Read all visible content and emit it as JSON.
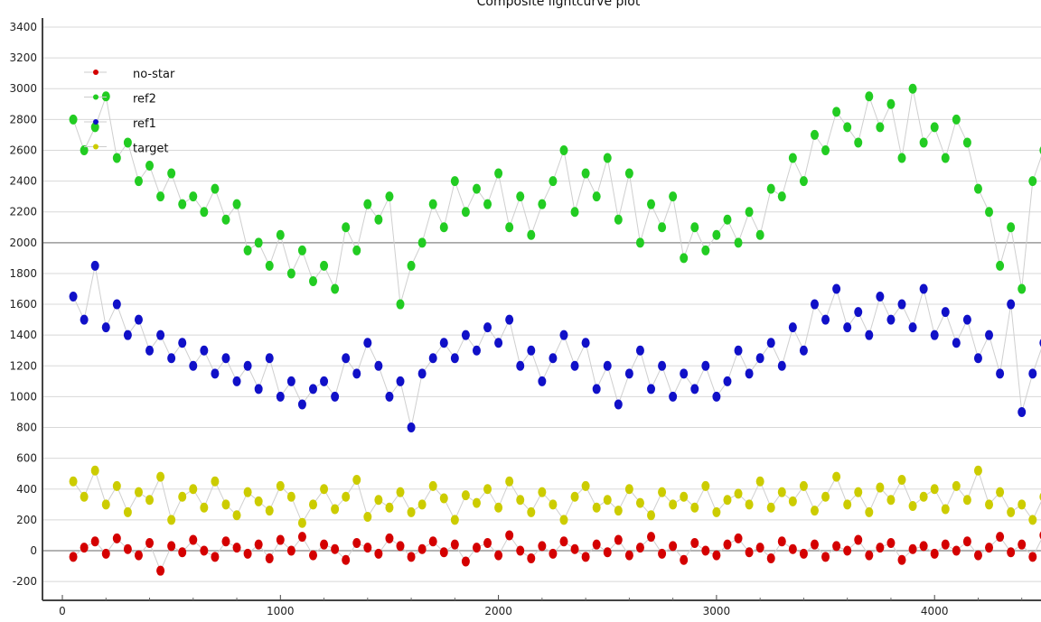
{
  "chart_data": {
    "type": "scatter",
    "title": "Composite lightcurve plot",
    "xlabel": "",
    "ylabel": "",
    "xlim": [
      -50,
      4520
    ],
    "ylim": [
      -300,
      3400
    ],
    "grid": true,
    "legend_position": "top-left",
    "x_ticks": [
      0,
      1000,
      2000,
      3000,
      4000
    ],
    "y_ticks": [
      -200,
      0,
      200,
      400,
      600,
      800,
      1000,
      1200,
      1400,
      1600,
      1800,
      2000,
      2200,
      2400,
      2600,
      2800,
      3000,
      3200,
      3400
    ],
    "x": [
      50,
      100,
      150,
      200,
      250,
      300,
      350,
      400,
      450,
      500,
      550,
      600,
      650,
      700,
      750,
      800,
      850,
      900,
      950,
      1000,
      1050,
      1100,
      1150,
      1200,
      1250,
      1300,
      1350,
      1400,
      1450,
      1500,
      1550,
      1600,
      1650,
      1700,
      1750,
      1800,
      1850,
      1900,
      1950,
      2000,
      2050,
      2100,
      2150,
      2200,
      2250,
      2300,
      2350,
      2400,
      2450,
      2500,
      2550,
      2600,
      2650,
      2700,
      2750,
      2800,
      2850,
      2900,
      2950,
      3000,
      3050,
      3100,
      3150,
      3200,
      3250,
      3300,
      3350,
      3400,
      3450,
      3500,
      3550,
      3600,
      3650,
      3700,
      3750,
      3800,
      3850,
      3900,
      3950,
      4000,
      4050,
      4100,
      4150,
      4200,
      4250,
      4300,
      4350,
      4400,
      4450,
      4500
    ],
    "series": [
      {
        "name": "no-star",
        "color": "#d40000",
        "values": [
          -40,
          20,
          60,
          -20,
          80,
          10,
          -30,
          50,
          -130,
          30,
          -10,
          70,
          0,
          -40,
          60,
          20,
          -20,
          40,
          -50,
          70,
          0,
          90,
          -30,
          40,
          10,
          -60,
          50,
          20,
          -20,
          80,
          30,
          -40,
          10,
          60,
          -10,
          40,
          -70,
          20,
          50,
          -30,
          100,
          0,
          -50,
          30,
          -20,
          60,
          10,
          -40,
          40,
          -10,
          70,
          -30,
          20,
          90,
          -20,
          30,
          -60,
          50,
          0,
          -30,
          40,
          80,
          -10,
          20,
          -50,
          60,
          10,
          -20,
          40,
          -40,
          30,
          0,
          70,
          -30,
          20,
          50,
          -60,
          10,
          30,
          -20,
          40,
          0,
          60,
          -30,
          20,
          90,
          -10,
          40,
          -40,
          100
        ]
      },
      {
        "name": "ref2",
        "color": "#22cc22",
        "values": [
          2800,
          2600,
          2750,
          2950,
          2550,
          2650,
          2400,
          2500,
          2300,
          2450,
          2250,
          2300,
          2200,
          2350,
          2150,
          2250,
          1950,
          2000,
          1850,
          2050,
          1800,
          1950,
          1750,
          1850,
          1700,
          2100,
          1950,
          2250,
          2150,
          2300,
          1600,
          1850,
          2000,
          2250,
          2100,
          2400,
          2200,
          2350,
          2250,
          2450,
          2100,
          2300,
          2050,
          2250,
          2400,
          2600,
          2200,
          2450,
          2300,
          2550,
          2150,
          2450,
          2000,
          2250,
          2100,
          2300,
          1900,
          2100,
          1950,
          2050,
          2150,
          2000,
          2200,
          2050,
          2350,
          2300,
          2550,
          2400,
          2700,
          2600,
          2850,
          2750,
          2650,
          2950,
          2750,
          2900,
          2550,
          3000,
          2650,
          2750,
          2550,
          2800,
          2650,
          2350,
          2200,
          1850,
          2100,
          1700,
          2400,
          2600
        ]
      },
      {
        "name": "ref1",
        "color": "#1010c8",
        "values": [
          1650,
          1500,
          1850,
          1450,
          1600,
          1400,
          1500,
          1300,
          1400,
          1250,
          1350,
          1200,
          1300,
          1150,
          1250,
          1100,
          1200,
          1050,
          1250,
          1000,
          1100,
          950,
          1050,
          1100,
          1000,
          1250,
          1150,
          1350,
          1200,
          1000,
          1100,
          800,
          1150,
          1250,
          1350,
          1250,
          1400,
          1300,
          1450,
          1350,
          1500,
          1200,
          1300,
          1100,
          1250,
          1400,
          1200,
          1350,
          1050,
          1200,
          950,
          1150,
          1300,
          1050,
          1200,
          1000,
          1150,
          1050,
          1200,
          1000,
          1100,
          1300,
          1150,
          1250,
          1350,
          1200,
          1450,
          1300,
          1600,
          1500,
          1700,
          1450,
          1550,
          1400,
          1650,
          1500,
          1600,
          1450,
          1700,
          1400,
          1550,
          1350,
          1500,
          1250,
          1400,
          1150,
          1600,
          900,
          1150,
          1350
        ]
      },
      {
        "name": "target",
        "color": "#cccc00",
        "values": [
          450,
          350,
          520,
          300,
          420,
          250,
          380,
          330,
          480,
          200,
          350,
          400,
          280,
          450,
          300,
          230,
          380,
          320,
          260,
          420,
          350,
          180,
          300,
          400,
          270,
          350,
          460,
          220,
          330,
          280,
          380,
          250,
          300,
          420,
          340,
          200,
          360,
          310,
          400,
          280,
          450,
          330,
          250,
          380,
          300,
          200,
          350,
          420,
          280,
          330,
          260,
          400,
          310,
          230,
          380,
          300,
          350,
          280,
          420,
          250,
          330,
          370,
          300,
          450,
          280,
          380,
          320,
          420,
          260,
          350,
          480,
          300,
          380,
          250,
          410,
          330,
          460,
          290,
          350,
          400,
          270,
          420,
          330,
          520,
          300,
          380,
          250,
          300,
          200,
          350
        ]
      }
    ]
  }
}
